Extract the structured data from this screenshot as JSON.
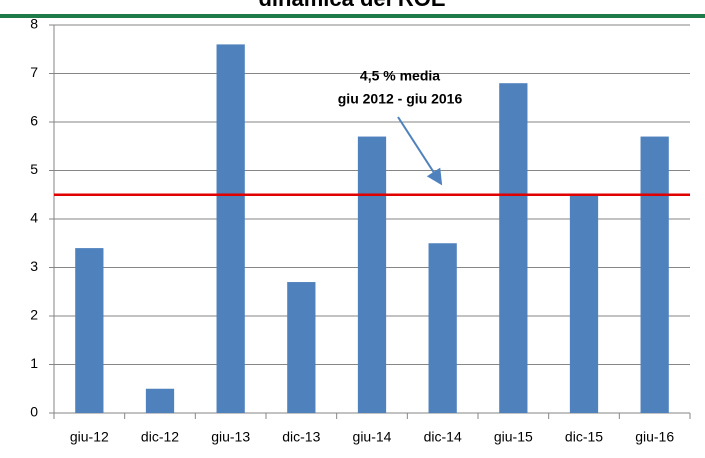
{
  "chart_data": {
    "type": "bar",
    "title": "dinamica del ROE",
    "categories": [
      "giu-12",
      "dic-12",
      "giu-13",
      "dic-13",
      "giu-14",
      "dic-14",
      "giu-15",
      "dic-15",
      "giu-16"
    ],
    "values": [
      3.4,
      0.5,
      7.6,
      2.7,
      5.7,
      3.5,
      6.8,
      4.5,
      5.7
    ],
    "color": "#4f81bd",
    "ylim": [
      0,
      8
    ],
    "yticks": [
      0,
      1,
      2,
      3,
      4,
      5,
      6,
      7,
      8
    ],
    "grid": true,
    "reference_line": {
      "value": 4.5,
      "color": "#e00000"
    },
    "annotation": [
      "4,5 % media",
      "giu 2012 - giu 2016"
    ]
  }
}
